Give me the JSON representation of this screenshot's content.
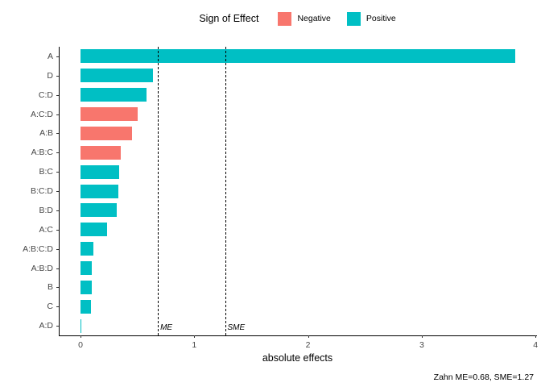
{
  "legend": {
    "title": "Sign of Effect",
    "items": [
      {
        "label": "Negative",
        "sign": "negative",
        "color": "#F8766D"
      },
      {
        "label": "Positive",
        "sign": "positive",
        "color": "#00BFC4"
      }
    ]
  },
  "chart_data": {
    "type": "bar",
    "orientation": "horizontal",
    "title": "",
    "xlabel": "absolute effects",
    "ylabel": "",
    "xlim": [
      0,
      4
    ],
    "x_ticks": [
      0,
      1,
      2,
      3,
      4
    ],
    "grid": false,
    "legend_position": "top-center",
    "categories": [
      "A",
      "D",
      "C:D",
      "A:C:D",
      "A:B",
      "A:B:C",
      "B:C",
      "B:C:D",
      "B:D",
      "A:C",
      "A:B:C:D",
      "A:B:D",
      "B",
      "C",
      "A:D"
    ],
    "values": [
      3.82,
      0.64,
      0.58,
      0.5,
      0.45,
      0.35,
      0.34,
      0.33,
      0.32,
      0.23,
      0.11,
      0.1,
      0.1,
      0.09,
      0.01
    ],
    "signs": [
      "positive",
      "positive",
      "positive",
      "negative",
      "negative",
      "negative",
      "positive",
      "positive",
      "positive",
      "positive",
      "positive",
      "positive",
      "positive",
      "positive",
      "positive"
    ],
    "ref_lines": [
      {
        "label": "ME",
        "value": 0.68
      },
      {
        "label": "SME",
        "value": 1.27
      }
    ]
  },
  "caption": "Zahn ME=0.68, SME=1.27"
}
